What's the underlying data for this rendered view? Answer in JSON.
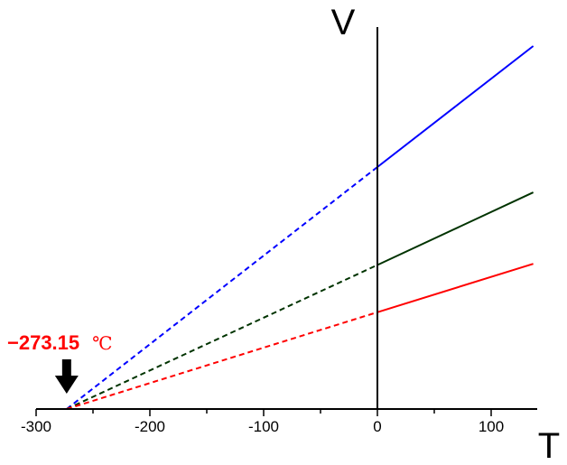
{
  "chart_data": {
    "type": "line",
    "title": "",
    "xlabel": "T",
    "ylabel": "V",
    "xlim": [
      -300,
      140
    ],
    "ylim": [
      0,
      3.1
    ],
    "x_ticks": [
      -300,
      -200,
      -100,
      0,
      100
    ],
    "x_tick_labels": [
      "-300",
      "-200",
      "-100",
      "0",
      "100"
    ],
    "grid": false,
    "legend": "none",
    "x_intercept": -273.15,
    "series": [
      {
        "color": "#0000ff",
        "x": [
          -273.15,
          0,
          137
        ],
        "y": [
          0,
          2.1,
          3.15
        ]
      },
      {
        "color": "#003300",
        "x": [
          -273.15,
          0,
          137
        ],
        "y": [
          0,
          1.25,
          1.88
        ]
      },
      {
        "color": "#ff0000",
        "x": [
          -273.15,
          0,
          137
        ],
        "y": [
          0,
          0.84,
          1.26
        ]
      }
    ],
    "annotation": {
      "value_text": "−273.15",
      "unit_text": "℃",
      "color": "#ff0000",
      "points_to_x": -273.15
    }
  }
}
